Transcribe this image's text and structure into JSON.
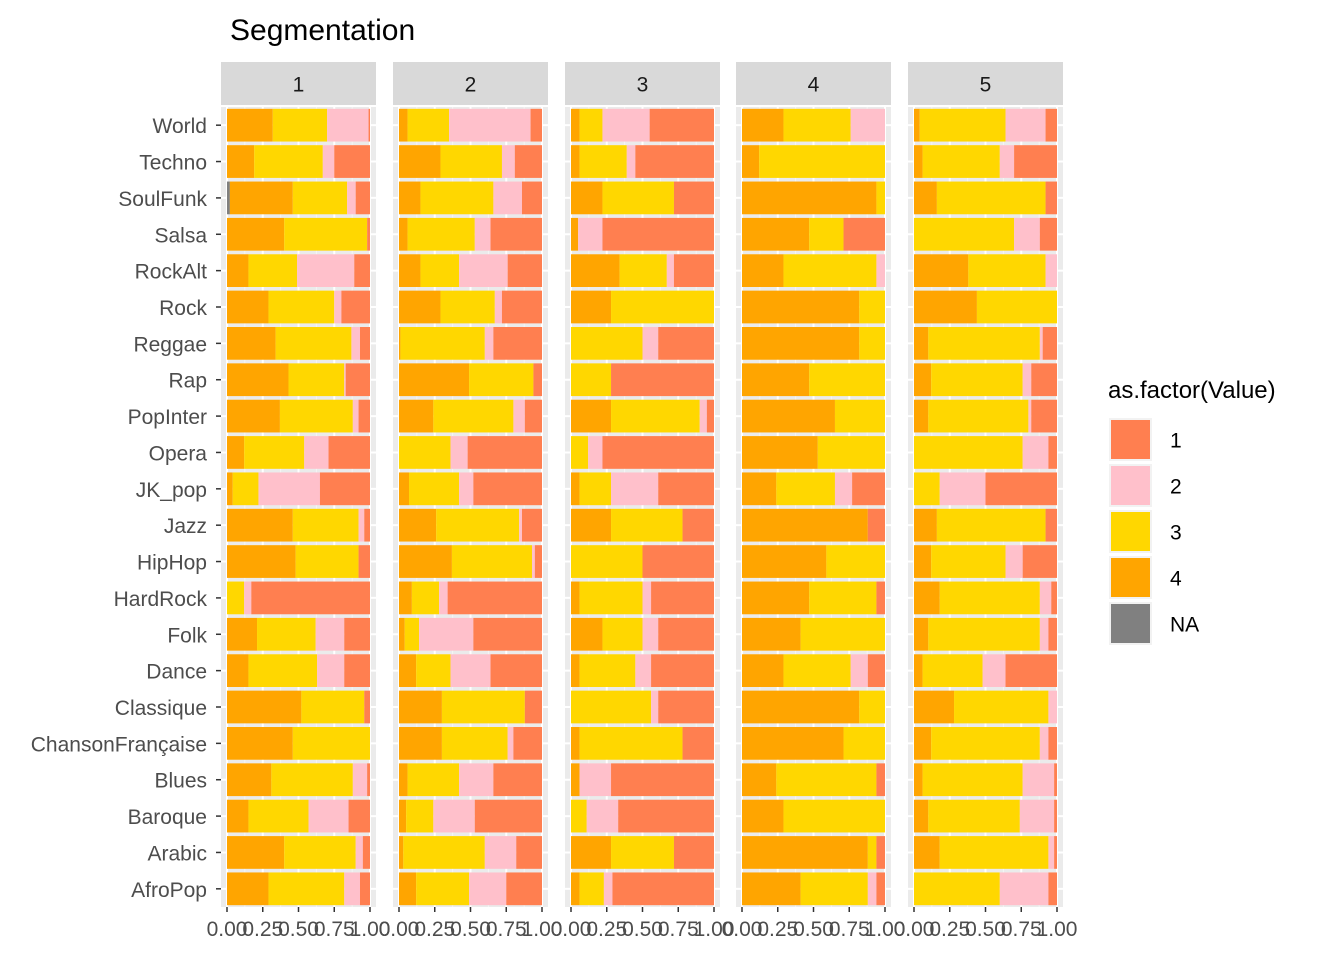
{
  "chart_data": {
    "type": "bar",
    "orientation": "horizontal",
    "stacked": true,
    "normalized": true,
    "title": "Segmentation",
    "xlabel": "",
    "ylabel": "",
    "xlim": [
      0,
      1
    ],
    "x_ticks": [
      "0.00",
      "0.25",
      "0.50",
      "0.75",
      "1.00"
    ],
    "x_tick_values": [
      0,
      0.25,
      0.5,
      0.75,
      1
    ],
    "legend": {
      "title": "as.factor(Value)",
      "position": "right",
      "entries": [
        {
          "label": "1",
          "color": "#FF7F50"
        },
        {
          "label": "2",
          "color": "#FFC0CB"
        },
        {
          "label": "3",
          "color": "#FFD700"
        },
        {
          "label": "4",
          "color": "#FFA500"
        },
        {
          "label": "NA",
          "color": "#808080"
        }
      ]
    },
    "stack_order": [
      "NA",
      "4",
      "3",
      "2",
      "1"
    ],
    "categories": [
      "World",
      "Techno",
      "SoulFunk",
      "Salsa",
      "RockAlt",
      "Rock",
      "Reggae",
      "Rap",
      "PopInter",
      "Opera",
      "JK_pop",
      "Jazz",
      "HipHop",
      "HardRock",
      "Folk",
      "Dance",
      "Classique",
      "ChansonFrançaise",
      "Blues",
      "Baroque",
      "Arabic",
      "AfroPop"
    ],
    "panels": [
      {
        "label": "1",
        "values": {
          "World": [
            0,
            0.32,
            0.38,
            0.29,
            0.01
          ],
          "Techno": [
            0,
            0.19,
            0.48,
            0.08,
            0.25
          ],
          "SoulFunk": [
            0.02,
            0.44,
            0.38,
            0.06,
            0.1
          ],
          "Salsa": [
            0,
            0.4,
            0.58,
            0,
            0.02
          ],
          "RockAlt": [
            0,
            0.15,
            0.34,
            0.4,
            0.11
          ],
          "Rock": [
            0,
            0.29,
            0.46,
            0.05,
            0.2
          ],
          "Reggae": [
            0,
            0.34,
            0.53,
            0.06,
            0.07
          ],
          "Rap": [
            0,
            0.43,
            0.39,
            0.01,
            0.17
          ],
          "PopInter": [
            0,
            0.37,
            0.51,
            0.04,
            0.08
          ],
          "Opera": [
            0,
            0.12,
            0.42,
            0.17,
            0.29
          ],
          "JK_pop": [
            0,
            0.04,
            0.18,
            0.43,
            0.35
          ],
          "Jazz": [
            0,
            0.46,
            0.46,
            0.04,
            0.04
          ],
          "HipHop": [
            0,
            0.48,
            0.44,
            0,
            0.08
          ],
          "HardRock": [
            0,
            0,
            0.12,
            0.05,
            0.83
          ],
          "Folk": [
            0,
            0.21,
            0.41,
            0.2,
            0.18
          ],
          "Dance": [
            0,
            0.15,
            0.48,
            0.19,
            0.18
          ],
          "Classique": [
            0,
            0.52,
            0.44,
            0,
            0.04
          ],
          "ChansonFrançaise": [
            0,
            0.46,
            0.54,
            0,
            0
          ],
          "Blues": [
            0,
            0.31,
            0.57,
            0.1,
            0.02
          ],
          "Baroque": [
            0,
            0.15,
            0.42,
            0.28,
            0.15
          ],
          "Arabic": [
            0,
            0.4,
            0.5,
            0.05,
            0.05
          ],
          "AfroPop": [
            0,
            0.29,
            0.53,
            0.11,
            0.07
          ]
        }
      },
      {
        "label": "2",
        "values": {
          "World": [
            0,
            0.06,
            0.29,
            0.57,
            0.08
          ],
          "Techno": [
            0,
            0.29,
            0.43,
            0.09,
            0.19
          ],
          "SoulFunk": [
            0,
            0.15,
            0.51,
            0.2,
            0.14
          ],
          "Salsa": [
            0,
            0.06,
            0.47,
            0.11,
            0.36
          ],
          "RockAlt": [
            0,
            0.15,
            0.27,
            0.34,
            0.24
          ],
          "Rock": [
            0,
            0.29,
            0.38,
            0.05,
            0.28
          ],
          "Reggae": [
            0,
            0.01,
            0.59,
            0.06,
            0.34
          ],
          "Rap": [
            0,
            0.49,
            0.45,
            0,
            0.06
          ],
          "PopInter": [
            0,
            0.24,
            0.56,
            0.08,
            0.12
          ],
          "Opera": [
            0,
            0,
            0.36,
            0.12,
            0.52
          ],
          "JK_pop": [
            0,
            0.07,
            0.35,
            0.1,
            0.48
          ],
          "Jazz": [
            0,
            0.26,
            0.58,
            0.02,
            0.14
          ],
          "HipHop": [
            0,
            0.37,
            0.56,
            0.02,
            0.05
          ],
          "HardRock": [
            0,
            0.09,
            0.19,
            0.06,
            0.66
          ],
          "Folk": [
            0,
            0.04,
            0.1,
            0.38,
            0.48
          ],
          "Dance": [
            0,
            0.12,
            0.24,
            0.28,
            0.36
          ],
          "Classique": [
            0,
            0.3,
            0.58,
            0,
            0.12
          ],
          "ChansonFrançaise": [
            0,
            0.3,
            0.46,
            0.04,
            0.2
          ],
          "Blues": [
            0,
            0.06,
            0.36,
            0.24,
            0.34
          ],
          "Baroque": [
            0,
            0.05,
            0.19,
            0.29,
            0.47
          ],
          "Arabic": [
            0,
            0.03,
            0.57,
            0.22,
            0.18
          ],
          "AfroPop": [
            0,
            0.12,
            0.37,
            0.26,
            0.25
          ]
        }
      },
      {
        "label": "3",
        "values": {
          "World": [
            0,
            0.06,
            0.16,
            0.33,
            0.45
          ],
          "Techno": [
            0,
            0.06,
            0.33,
            0.06,
            0.55
          ],
          "SoulFunk": [
            0,
            0.22,
            0.5,
            0,
            0.28
          ],
          "Salsa": [
            0,
            0.05,
            0,
            0.17,
            0.78
          ],
          "RockAlt": [
            0,
            0.34,
            0.33,
            0.05,
            0.28
          ],
          "Rock": [
            0,
            0.28,
            0.72,
            0,
            0
          ],
          "Reggae": [
            0,
            0,
            0.5,
            0.11,
            0.39
          ],
          "Rap": [
            0,
            0,
            0.28,
            0,
            0.72
          ],
          "PopInter": [
            0,
            0.28,
            0.62,
            0.05,
            0.05
          ],
          "Opera": [
            0,
            0,
            0.12,
            0.1,
            0.78
          ],
          "JK_pop": [
            0,
            0.06,
            0.22,
            0.33,
            0.39
          ],
          "Jazz": [
            0,
            0.28,
            0.5,
            0,
            0.22
          ],
          "HipHop": [
            0,
            0,
            0.5,
            0,
            0.5
          ],
          "HardRock": [
            0,
            0.06,
            0.44,
            0.06,
            0.44
          ],
          "Folk": [
            0,
            0.22,
            0.28,
            0.11,
            0.39
          ],
          "Dance": [
            0,
            0.06,
            0.39,
            0.11,
            0.44
          ],
          "Classique": [
            0,
            0,
            0.56,
            0.05,
            0.39
          ],
          "ChansonFrançaise": [
            0,
            0.06,
            0.72,
            0,
            0.22
          ],
          "Blues": [
            0,
            0.06,
            0,
            0.22,
            0.72
          ],
          "Baroque": [
            0,
            0,
            0.11,
            0.22,
            0.67
          ],
          "Arabic": [
            0,
            0.28,
            0.44,
            0,
            0.28
          ],
          "AfroPop": [
            0,
            0.06,
            0.17,
            0.06,
            0.71
          ]
        }
      },
      {
        "label": "4",
        "values": {
          "World": [
            0,
            0.29,
            0.47,
            0.24,
            0
          ],
          "Techno": [
            0,
            0.12,
            0.88,
            0,
            0
          ],
          "SoulFunk": [
            0,
            0.94,
            0.06,
            0,
            0
          ],
          "Salsa": [
            0,
            0.47,
            0.24,
            0,
            0.29
          ],
          "RockAlt": [
            0,
            0.29,
            0.65,
            0.06,
            0
          ],
          "Rock": [
            0,
            0.82,
            0.18,
            0,
            0
          ],
          "Reggae": [
            0,
            0.82,
            0.18,
            0,
            0
          ],
          "Rap": [
            0,
            0.47,
            0.53,
            0,
            0
          ],
          "PopInter": [
            0,
            0.65,
            0.35,
            0,
            0
          ],
          "Opera": [
            0,
            0.53,
            0.47,
            0,
            0
          ],
          "JK_pop": [
            0,
            0.24,
            0.41,
            0.12,
            0.23
          ],
          "Jazz": [
            0,
            0.88,
            0,
            0,
            0.12
          ],
          "HipHop": [
            0,
            0.59,
            0.41,
            0,
            0
          ],
          "HardRock": [
            0,
            0.47,
            0.47,
            0,
            0.06
          ],
          "Folk": [
            0,
            0.41,
            0.59,
            0,
            0
          ],
          "Dance": [
            0,
            0.29,
            0.47,
            0.12,
            0.12
          ],
          "Classique": [
            0,
            0.82,
            0.18,
            0,
            0
          ],
          "ChansonFrançaise": [
            0,
            0.71,
            0.29,
            0,
            0
          ],
          "Blues": [
            0,
            0.24,
            0.7,
            0,
            0.06
          ],
          "Baroque": [
            0,
            0.29,
            0.71,
            0,
            0
          ],
          "Arabic": [
            0,
            0.88,
            0.06,
            0,
            0.06
          ],
          "AfroPop": [
            0,
            0.41,
            0.47,
            0.06,
            0.06
          ]
        }
      },
      {
        "label": "5",
        "values": {
          "World": [
            0,
            0.04,
            0.6,
            0.28,
            0.08
          ],
          "Techno": [
            0,
            0.06,
            0.54,
            0.1,
            0.3
          ],
          "SoulFunk": [
            0,
            0.16,
            0.76,
            0,
            0.08
          ],
          "Salsa": [
            0,
            0,
            0.7,
            0.18,
            0.12
          ],
          "RockAlt": [
            0,
            0.38,
            0.54,
            0.08,
            0
          ],
          "Rock": [
            0,
            0.44,
            0.56,
            0,
            0
          ],
          "Reggae": [
            0,
            0.1,
            0.78,
            0.02,
            0.1
          ],
          "Rap": [
            0,
            0.12,
            0.64,
            0.06,
            0.18
          ],
          "PopInter": [
            0,
            0.1,
            0.7,
            0.02,
            0.18
          ],
          "Opera": [
            0,
            0,
            0.76,
            0.18,
            0.06
          ],
          "JK_pop": [
            0,
            0,
            0.18,
            0.32,
            0.5
          ],
          "Jazz": [
            0,
            0.16,
            0.76,
            0,
            0.08
          ],
          "HipHop": [
            0,
            0.12,
            0.52,
            0.12,
            0.24
          ],
          "HardRock": [
            0,
            0.18,
            0.7,
            0.08,
            0.04
          ],
          "Folk": [
            0,
            0.1,
            0.78,
            0.06,
            0.06
          ],
          "Dance": [
            0,
            0.06,
            0.42,
            0.16,
            0.36
          ],
          "Classique": [
            0,
            0.28,
            0.66,
            0.06,
            0
          ],
          "ChansonFrançaise": [
            0,
            0.12,
            0.76,
            0.06,
            0.06
          ],
          "Blues": [
            0,
            0.06,
            0.7,
            0.22,
            0.02
          ],
          "Baroque": [
            0,
            0.1,
            0.64,
            0.24,
            0.02
          ],
          "Arabic": [
            0,
            0.18,
            0.76,
            0.04,
            0.02
          ],
          "AfroPop": [
            0,
            0,
            0.6,
            0.34,
            0.06
          ]
        }
      }
    ]
  }
}
